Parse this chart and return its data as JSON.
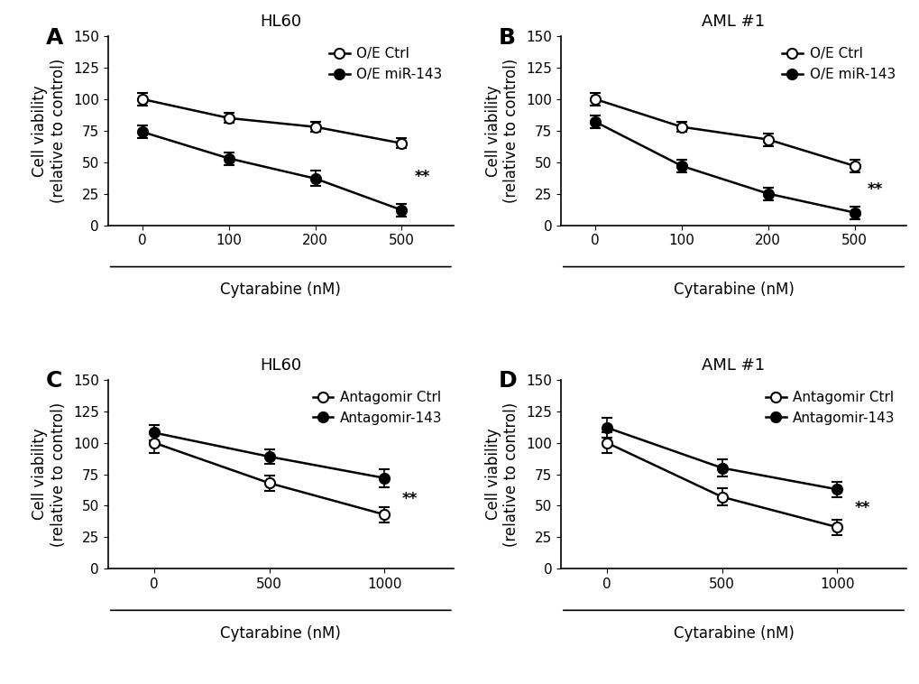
{
  "panels": [
    {
      "label": "A",
      "title": "HL60",
      "x_ticks": [
        0,
        100,
        200,
        500
      ],
      "x_label": "Cytarabine (nM)",
      "y_label": "Cell viability\n(relative to control)",
      "y_lim": [
        0,
        150
      ],
      "y_ticks": [
        0,
        25,
        50,
        75,
        100,
        125,
        150
      ],
      "legend_labels": [
        "O/E Ctrl",
        "O/E miR-143"
      ],
      "series": [
        {
          "y": [
            100,
            85,
            78,
            65
          ],
          "yerr": [
            5,
            4,
            4,
            4
          ],
          "color": "white",
          "edgecolor": "black",
          "filled": false
        },
        {
          "y": [
            74,
            53,
            37,
            12
          ],
          "yerr": [
            5,
            5,
            6,
            5
          ],
          "color": "black",
          "edgecolor": "black",
          "filled": true
        }
      ],
      "sig_x": 500,
      "sig_y": 38,
      "sig_text": "**"
    },
    {
      "label": "B",
      "title": "AML #1",
      "x_ticks": [
        0,
        100,
        200,
        500
      ],
      "x_label": "Cytarabine (nM)",
      "y_label": "Cell viability\n(relative to control)",
      "y_lim": [
        0,
        150
      ],
      "y_ticks": [
        0,
        25,
        50,
        75,
        100,
        125,
        150
      ],
      "legend_labels": [
        "O/E Ctrl",
        "O/E miR-143"
      ],
      "series": [
        {
          "y": [
            100,
            78,
            68,
            47
          ],
          "yerr": [
            5,
            4,
            5,
            5
          ],
          "color": "white",
          "edgecolor": "black",
          "filled": false
        },
        {
          "y": [
            82,
            47,
            25,
            10
          ],
          "yerr": [
            5,
            5,
            5,
            5
          ],
          "color": "black",
          "edgecolor": "black",
          "filled": true
        }
      ],
      "sig_x": 500,
      "sig_y": 28,
      "sig_text": "**"
    },
    {
      "label": "C",
      "title": "HL60",
      "x_ticks": [
        0,
        500,
        1000
      ],
      "x_label": "Cytarabine (nM)",
      "y_label": "Cell viability\n(relative to control)",
      "y_lim": [
        0,
        150
      ],
      "y_ticks": [
        0,
        25,
        50,
        75,
        100,
        125,
        150
      ],
      "legend_labels": [
        "Antagomir Ctrl",
        "Antagomir-143"
      ],
      "series": [
        {
          "y": [
            100,
            68,
            43
          ],
          "yerr": [
            8,
            6,
            6
          ],
          "color": "white",
          "edgecolor": "black",
          "filled": false
        },
        {
          "y": [
            108,
            89,
            72
          ],
          "yerr": [
            6,
            6,
            7
          ],
          "color": "black",
          "edgecolor": "black",
          "filled": true
        }
      ],
      "sig_x": 1000,
      "sig_y": 55,
      "sig_text": "**"
    },
    {
      "label": "D",
      "title": "AML #1",
      "x_ticks": [
        0,
        500,
        1000
      ],
      "x_label": "Cytarabine (nM)",
      "y_label": "Cell viability\n(relative to control)",
      "y_lim": [
        0,
        150
      ],
      "y_ticks": [
        0,
        25,
        50,
        75,
        100,
        125,
        150
      ],
      "legend_labels": [
        "Antagomir Ctrl",
        "Antagomir-143"
      ],
      "series": [
        {
          "y": [
            100,
            57,
            33
          ],
          "yerr": [
            8,
            7,
            6
          ],
          "color": "white",
          "edgecolor": "black",
          "filled": false
        },
        {
          "y": [
            112,
            80,
            63
          ],
          "yerr": [
            8,
            7,
            6
          ],
          "color": "black",
          "edgecolor": "black",
          "filled": true
        }
      ],
      "sig_x": 1000,
      "sig_y": 48,
      "sig_text": "**"
    }
  ],
  "background_color": "#ffffff",
  "line_color": "black",
  "marker_size": 8,
  "line_width": 1.8,
  "capsize": 4,
  "elinewidth": 1.2,
  "label_fontsize": 12,
  "title_fontsize": 13,
  "tick_fontsize": 11,
  "legend_fontsize": 11,
  "panel_label_fontsize": 18
}
